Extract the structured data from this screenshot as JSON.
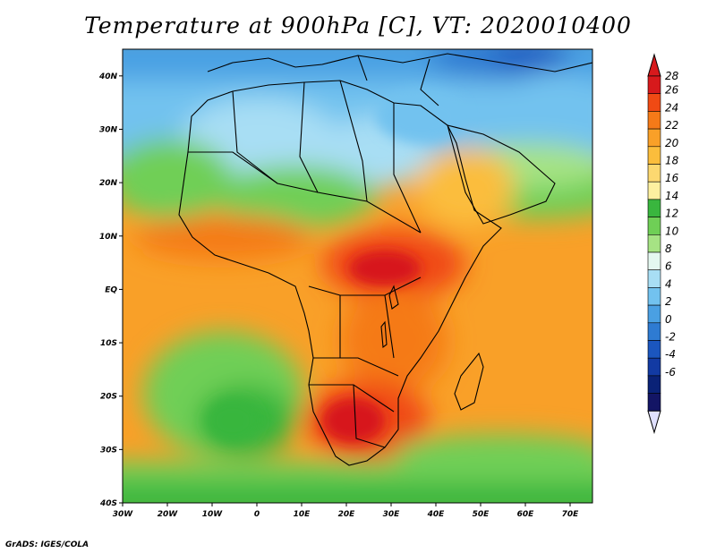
{
  "title": "Temperature at 900hPa [C], VT: 2020010400",
  "credit": "GrADS: IGES/COLA",
  "map": {
    "lon_range": [
      -30,
      75
    ],
    "lat_range": [
      -40,
      45
    ],
    "lon_ticks": [
      {
        "value": -30,
        "label": "30W"
      },
      {
        "value": -20,
        "label": "20W"
      },
      {
        "value": -10,
        "label": "10W"
      },
      {
        "value": 0,
        "label": "0"
      },
      {
        "value": 10,
        "label": "10E"
      },
      {
        "value": 20,
        "label": "20E"
      },
      {
        "value": 30,
        "label": "30E"
      },
      {
        "value": 40,
        "label": "40E"
      },
      {
        "value": 50,
        "label": "50E"
      },
      {
        "value": 60,
        "label": "60E"
      },
      {
        "value": 70,
        "label": "70E"
      }
    ],
    "lat_ticks": [
      {
        "value": 40,
        "label": "40N"
      },
      {
        "value": 30,
        "label": "30N"
      },
      {
        "value": 20,
        "label": "20N"
      },
      {
        "value": 10,
        "label": "10N"
      },
      {
        "value": 0,
        "label": "EQ"
      },
      {
        "value": -10,
        "label": "10S"
      },
      {
        "value": -20,
        "label": "20S"
      },
      {
        "value": -30,
        "label": "30S"
      },
      {
        "value": -40,
        "label": "40S"
      }
    ]
  },
  "colorbar": {
    "labels": [
      "28",
      "26",
      "24",
      "22",
      "20",
      "18",
      "16",
      "14",
      "12",
      "10",
      "8",
      "6",
      "4",
      "2",
      "0",
      "-2",
      "-4",
      "-6"
    ],
    "colors": [
      "#d7191c",
      "#f04a14",
      "#f57a18",
      "#f9a028",
      "#fbbd3c",
      "#fcd870",
      "#fdf0a0",
      "#39b63e",
      "#6fcf56",
      "#a6e384",
      "#e4f8f0",
      "#a8def4",
      "#72c2ef",
      "#4aa0e3",
      "#2e7bd2",
      "#1b56bf",
      "#123aa3",
      "#0a2277",
      "#131565"
    ],
    "end_colors": {
      "max": "#d7191c",
      "min": "#e0e0ff"
    }
  }
}
